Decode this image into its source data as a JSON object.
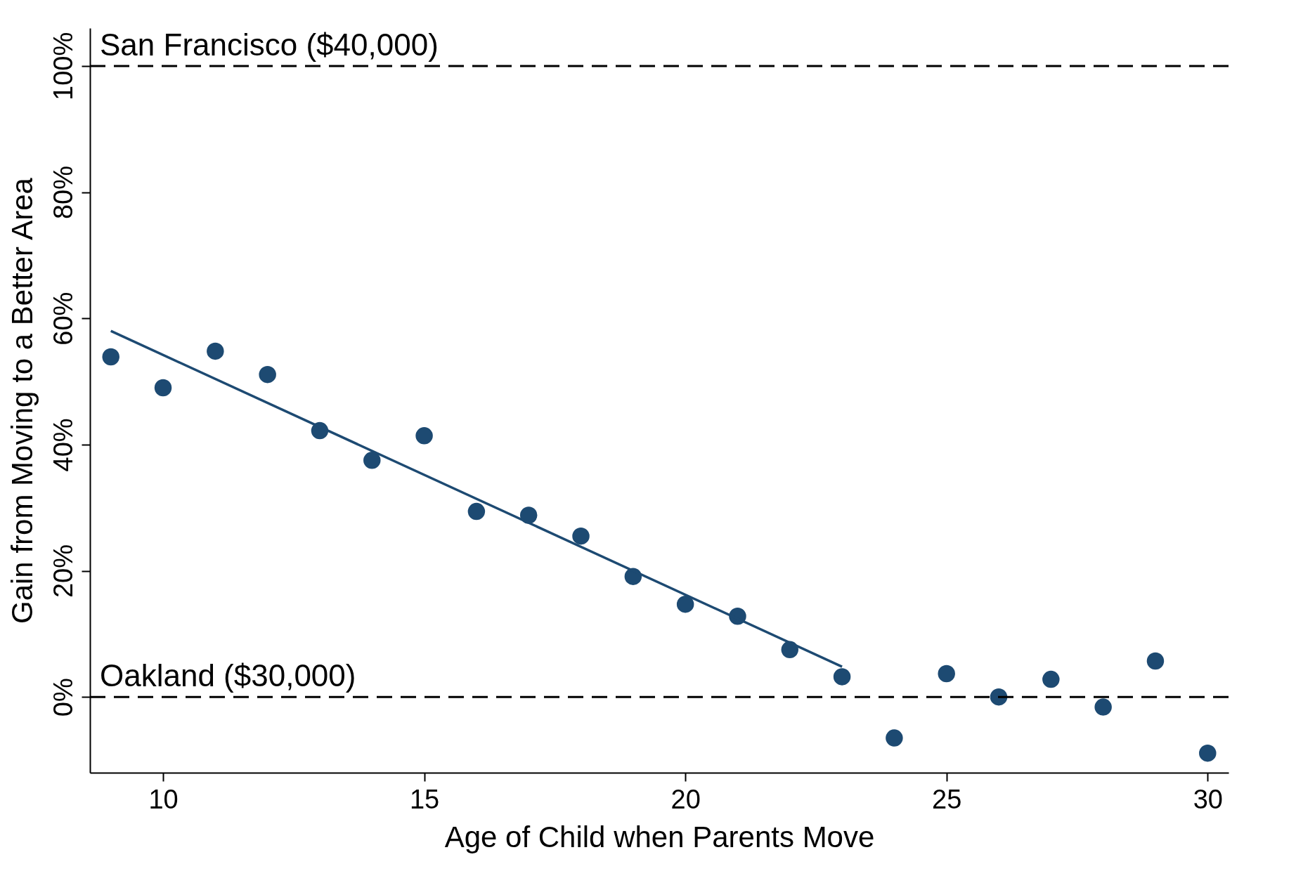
{
  "chart_data": {
    "type": "scatter",
    "xlabel": "Age of Child when Parents Move",
    "ylabel": "Gain from Moving to a Better Area",
    "xlim": [
      8.6,
      30.4
    ],
    "xticks": [
      10,
      15,
      20,
      25,
      30
    ],
    "ylim": [
      -12,
      106
    ],
    "yticks": [
      {
        "value": 0,
        "label": "0%"
      },
      {
        "value": 20,
        "label": "20%"
      },
      {
        "value": 40,
        "label": "40%"
      },
      {
        "value": 60,
        "label": "60%"
      },
      {
        "value": 80,
        "label": "80%"
      },
      {
        "value": 100,
        "label": "100%"
      }
    ],
    "grid": false,
    "x": [
      9,
      10,
      11,
      12,
      13,
      14,
      15,
      16,
      17,
      18,
      19,
      20,
      21,
      22,
      23,
      24,
      25,
      26,
      27,
      28,
      29,
      30
    ],
    "series": [
      {
        "marker": "circle",
        "color": "#1d4a72",
        "values": [
          53.9,
          49.0,
          54.8,
          51.1,
          42.2,
          37.5,
          41.4,
          29.4,
          28.8,
          25.5,
          19.1,
          14.7,
          12.8,
          7.5,
          3.2,
          -6.5,
          3.7,
          0,
          2.8,
          -1.6,
          5.7,
          -8.9
        ]
      },
      {
        "type": "line",
        "marker": "none",
        "color": "#1d4a72",
        "x": [
          9,
          23
        ],
        "values": [
          58.0,
          4.8
        ]
      }
    ],
    "ref_lines": [
      {
        "axis": "y",
        "value": 100,
        "label": "San Francisco ($40,000)",
        "color": "#000000",
        "line_style": "dashed"
      },
      {
        "axis": "y",
        "value": 0,
        "label": "Oakland ($30,000)",
        "color": "#000000",
        "line_style": "dashed"
      }
    ]
  }
}
